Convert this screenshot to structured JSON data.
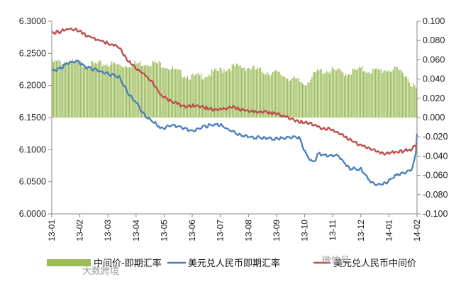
{
  "colors": {
    "spread_bar": "#9BBB59",
    "spot_line": "#4A7EBB",
    "central_line": "#BE4B48",
    "axis": "#888888",
    "watermark": "#9a9a9a"
  },
  "watermarks": {
    "left": "大数跨境",
    "right": "微信号"
  },
  "chart_data": {
    "type": "line",
    "x_tick_labels": [
      "13-01",
      "13-02",
      "13-03",
      "13-04",
      "13-05",
      "13-06",
      "13-07",
      "13-08",
      "13-09",
      "13-10",
      "13-11",
      "13-12",
      "14-01",
      "14-02"
    ],
    "y_left": {
      "min": 6.0,
      "max": 6.3,
      "ticks": [
        "6.0000",
        "6.0500",
        "6.1000",
        "6.1500",
        "6.2000",
        "6.2500",
        "6.3000"
      ]
    },
    "y_right": {
      "min": -0.1,
      "max": 0.1,
      "ticks": [
        "-0.100",
        "-0.080",
        "-0.060",
        "-0.040",
        "-0.020",
        "0.000",
        "0.020",
        "0.040",
        "0.060",
        "0.080",
        "0.100"
      ]
    },
    "grid": false,
    "legend_position": "bottom",
    "series": [
      {
        "name": "中间价-即期汇率",
        "type": "bar",
        "axis": "right",
        "x": [
          0,
          0.5,
          1,
          1.5,
          2,
          2.5,
          3,
          3.5,
          4,
          4.5,
          5,
          5.5,
          6,
          6.5,
          7,
          7.5,
          8,
          8.5,
          9,
          9.5,
          10,
          10.5,
          11,
          11.5,
          12,
          12.5,
          13
        ],
        "values": [
          0.059,
          0.06,
          0.058,
          0.057,
          0.058,
          0.056,
          0.058,
          0.059,
          0.057,
          0.049,
          0.044,
          0.046,
          0.051,
          0.055,
          0.054,
          0.05,
          0.048,
          0.043,
          0.037,
          0.05,
          0.051,
          0.048,
          0.052,
          0.05,
          0.052,
          0.05,
          0.03
        ]
      },
      {
        "name": "美元兑人民币即期汇率",
        "type": "line",
        "axis": "left",
        "x": [
          0,
          0.3,
          0.6,
          0.9,
          1.2,
          1.5,
          1.8,
          2.1,
          2.4,
          2.7,
          3.0,
          3.3,
          3.6,
          3.9,
          4.0,
          4.3,
          4.6,
          5.0,
          5.3,
          5.6,
          6.0,
          6.4,
          6.8,
          7.2,
          7.6,
          8.0,
          8.4,
          8.8,
          9.1,
          9.3,
          9.5,
          9.8,
          10.2,
          10.6,
          11.0,
          11.4,
          11.6,
          11.9,
          12.2,
          12.5,
          12.8,
          12.95,
          13.0
        ],
        "values": [
          6.223,
          6.228,
          6.236,
          6.24,
          6.23,
          6.226,
          6.222,
          6.218,
          6.215,
          6.19,
          6.175,
          6.155,
          6.145,
          6.135,
          6.135,
          6.14,
          6.135,
          6.13,
          6.135,
          6.139,
          6.14,
          6.13,
          6.123,
          6.12,
          6.12,
          6.118,
          6.12,
          6.12,
          6.09,
          6.08,
          6.095,
          6.092,
          6.092,
          6.072,
          6.071,
          6.05,
          6.047,
          6.05,
          6.06,
          6.065,
          6.07,
          6.09,
          6.125
        ]
      },
      {
        "name": "美元兑人民币中间价",
        "type": "line",
        "axis": "left",
        "x": [
          0,
          0.3,
          0.6,
          0.9,
          1.2,
          1.5,
          1.8,
          2.1,
          2.4,
          2.7,
          3.0,
          3.3,
          3.6,
          3.9,
          4.2,
          4.5,
          4.8,
          5.0,
          5.3,
          5.6,
          6.0,
          6.4,
          6.8,
          7.2,
          7.6,
          8.0,
          8.4,
          8.8,
          9.2,
          9.6,
          10.0,
          10.4,
          10.8,
          11.2,
          11.6,
          11.9,
          12.2,
          12.5,
          12.8,
          13.0
        ],
        "values": [
          6.283,
          6.285,
          6.29,
          6.288,
          6.28,
          6.275,
          6.27,
          6.265,
          6.26,
          6.24,
          6.228,
          6.218,
          6.205,
          6.185,
          6.178,
          6.172,
          6.168,
          6.17,
          6.168,
          6.165,
          6.163,
          6.168,
          6.163,
          6.16,
          6.16,
          6.157,
          6.152,
          6.145,
          6.142,
          6.135,
          6.132,
          6.122,
          6.112,
          6.105,
          6.098,
          6.095,
          6.097,
          6.099,
          6.102,
          6.11
        ]
      }
    ]
  }
}
